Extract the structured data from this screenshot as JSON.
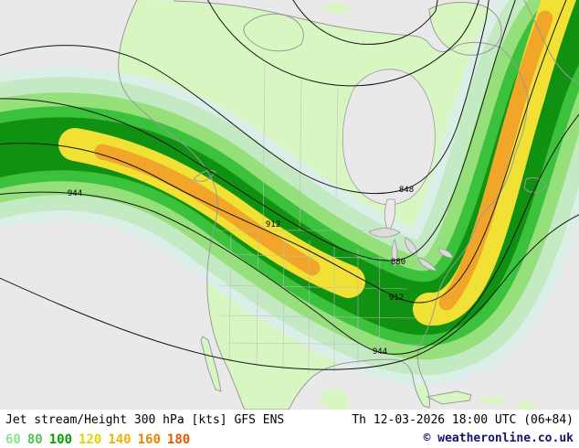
{
  "map": {
    "contour_labels": [
      {
        "text": "944"
      },
      {
        "text": "912"
      },
      {
        "text": "848"
      },
      {
        "text": "880"
      },
      {
        "text": "912"
      },
      {
        "text": "944"
      }
    ],
    "colors": {
      "ocean": "#e9e9e9",
      "land": "#d7f6c2",
      "lake": "#dcdcdc",
      "band_edge": "#dceee8",
      "band_60": "#c3eac3",
      "band_80": "#96e07c",
      "band_100": "#3cc13c",
      "band_dark": "#119111",
      "band_120": "#f2e135",
      "band_140": "#f2a629"
    }
  },
  "footer": {
    "product": "Jet stream/Height 300 hPa [kts] GFS ENS",
    "valid": "Th 12-03-2026 18:00 UTC (06+84)",
    "scale": [
      {
        "label": "60",
        "color": "#8fe08f"
      },
      {
        "label": "80",
        "color": "#4cc94c"
      },
      {
        "label": "100",
        "color": "#00a300"
      },
      {
        "label": "120",
        "color": "#ddd600"
      },
      {
        "label": "140",
        "color": "#efb400"
      },
      {
        "label": "160",
        "color": "#ef8200"
      },
      {
        "label": "180",
        "color": "#e85600"
      }
    ],
    "copyright": "© weatheronline.co.uk"
  }
}
